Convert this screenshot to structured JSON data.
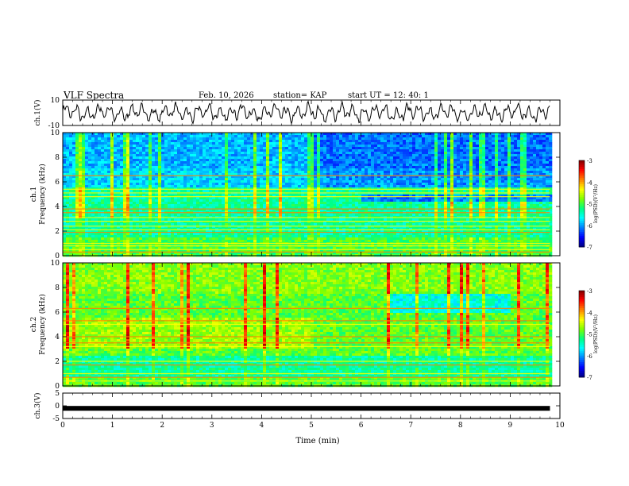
{
  "header": {
    "title": "VLF Spectra",
    "date": "Feb. 10, 2026",
    "station": "station= KAP",
    "start_ut": "start  UT =    12: 40: 1"
  },
  "chart_data": [
    {
      "id": "ch1-waveform",
      "type": "line",
      "ylabel": "ch.1(V)",
      "ylim": [
        -10,
        10
      ],
      "yticks": [
        "10",
        "-10"
      ],
      "xlim": [
        0,
        10
      ],
      "data_end": 9.8,
      "description": "noisy voltage waveform oscillating roughly between -7 and 7 V"
    },
    {
      "id": "ch1-spectrogram",
      "type": "heatmap",
      "ylabel_line1": "ch.1",
      "ylabel_line2": "Frequency  (kHz)",
      "ylim": [
        0,
        10
      ],
      "yticks": [
        "0",
        "2",
        "4",
        "6",
        "8",
        "10"
      ],
      "xlim": [
        0,
        10
      ],
      "data_end": 9.8,
      "colorbar": {
        "label": "log(PSD)(V²/Hz)",
        "range": [
          -7,
          -3
        ],
        "ticks": [
          "-3",
          "-4",
          "-5",
          "-6",
          "-7"
        ]
      },
      "horizontal_lines_khz": [
        0.3,
        0.5,
        0.8,
        1.0,
        1.9,
        2.1,
        2.4,
        2.8,
        3.1,
        3.5,
        3.8,
        4.8,
        5.1,
        5.4,
        6.5
      ],
      "blue_region_khz": [
        5.5,
        10
      ]
    },
    {
      "id": "ch2-spectrogram",
      "type": "heatmap",
      "ylabel_line1": "ch.2",
      "ylabel_line2": "Frequency  (kHz)",
      "ylim": [
        0,
        10
      ],
      "yticks": [
        "0",
        "2",
        "4",
        "6",
        "8",
        "10"
      ],
      "xlim": [
        0,
        10
      ],
      "data_end": 9.8,
      "colorbar": {
        "label": "log(PSD)(V²/Hz)",
        "range": [
          -7,
          -3
        ],
        "ticks": [
          "-3",
          "-4",
          "-5",
          "-6",
          "-7"
        ]
      },
      "horizontal_lines_khz": [
        0.4,
        0.7,
        1.0,
        1.7,
        2.0,
        3.2,
        3.5,
        4.0,
        5.0,
        5.3,
        6.3
      ],
      "blue_region_khz": [
        6.5,
        8
      ]
    },
    {
      "id": "ch3-trace",
      "type": "line",
      "ylabel": "ch.3(V)",
      "ylim": [
        -5,
        5
      ],
      "yticks": [
        "5",
        "0",
        "-5"
      ],
      "xlim": [
        0,
        10
      ],
      "data_end": 9.8,
      "level": -1
    }
  ],
  "xaxis": {
    "label": "Time  (min)",
    "ticks": [
      "0",
      "1",
      "2",
      "3",
      "4",
      "5",
      "6",
      "7",
      "8",
      "9",
      "10"
    ]
  },
  "colorscale": [
    "#000080",
    "#0000ff",
    "#0080ff",
    "#00ffff",
    "#00ff80",
    "#80ff00",
    "#ffff00",
    "#ff8000",
    "#ff0000",
    "#800000"
  ]
}
